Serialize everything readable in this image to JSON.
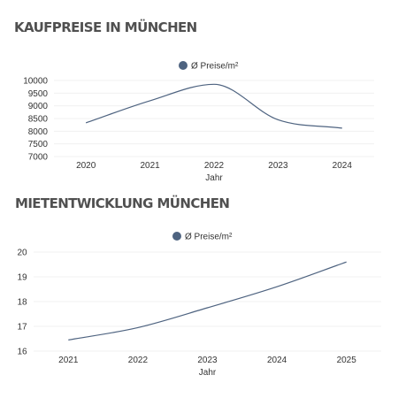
{
  "charts": [
    {
      "heading": "KAUFPREISE IN MÜNCHEN",
      "chart_data": {
        "type": "line",
        "title": "KAUFPREISE IN MÜNCHEN",
        "x": [
          "2020",
          "2021",
          "2022",
          "2023",
          "2024"
        ],
        "series": [
          {
            "name": "Ø Preise/m²",
            "values": [
              8330,
              9200,
              9850,
              8450,
              8120
            ],
            "color": "#4e6380"
          }
        ],
        "xlabel": "Jahr",
        "ylabel": "",
        "ylim": [
          7000,
          10000
        ],
        "yticks": [
          "7000",
          "7500",
          "8000",
          "8500",
          "9000",
          "9500",
          "10000"
        ],
        "legend": "top-center",
        "grid": true
      }
    },
    {
      "heading": "MIETENTWICKLUNG MÜNCHEN",
      "chart_data": {
        "type": "line",
        "title": "MIETENTWICKLUNG MÜNCHEN",
        "x": [
          "2021",
          "2022",
          "2023",
          "2024",
          "2025"
        ],
        "series": [
          {
            "name": "Ø Preise/m²",
            "values": [
              16.45,
              16.95,
              17.75,
              18.6,
              19.6
            ],
            "color": "#4e6380"
          }
        ],
        "xlabel": "Jahr",
        "ylabel": "",
        "ylim": [
          16,
          20
        ],
        "yticks": [
          "16",
          "17",
          "18",
          "19",
          "20"
        ],
        "legend": "top-center",
        "grid": true
      }
    }
  ]
}
